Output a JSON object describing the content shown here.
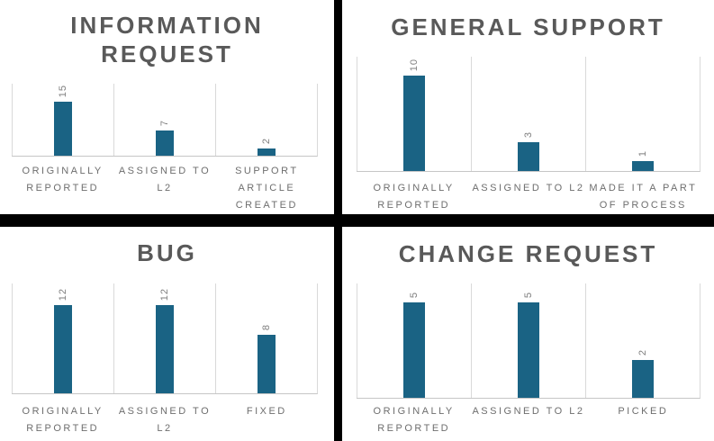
{
  "style": {
    "bar_color": "#1A6384",
    "title_color": "#595959",
    "category_label_color": "#6E6E6E",
    "value_label_color": "#7F7F7F",
    "gridline_color": "#D9D9D9",
    "baseline_color": "#C6C6C6",
    "divider_color": "#000000",
    "background": "#FFFFFF"
  },
  "layout_notes": {
    "arrangement": "2x2 grid of bar charts separated by thick black cross dividers",
    "value_labels": "rotated 90 degrees, reading bottom-to-top, above each bar",
    "legend": "none",
    "grid": "vertical category separator lines and bottom baseline only"
  },
  "chart_data": [
    {
      "type": "bar",
      "position": "top-left",
      "title": "INFORMATION REQUEST",
      "title_lines": [
        "INFORMATION",
        "REQUEST"
      ],
      "categories": [
        "ORIGINALLY REPORTED",
        "ASSIGNED TO L2",
        "SUPPORT ARTICLE CREATED"
      ],
      "category_lines": [
        [
          "ORIGINALLY",
          "REPORTED"
        ],
        [
          "ASSIGNED TO",
          "L2"
        ],
        [
          "SUPPORT",
          "ARTICLE",
          "CREATED"
        ]
      ],
      "values": [
        15,
        7,
        2
      ],
      "xlabel": "",
      "ylabel": "",
      "ylim": [
        0,
        20
      ]
    },
    {
      "type": "bar",
      "position": "top-right",
      "title": "GENERAL SUPPORT",
      "title_lines": [
        "GENERAL SUPPORT"
      ],
      "categories": [
        "ORIGINALLY REPORTED",
        "ASSIGNED TO L2",
        "MADE IT A PART OF PROCESS"
      ],
      "category_lines": [
        [
          "ORIGINALLY",
          "REPORTED"
        ],
        [
          "ASSIGNED TO L2"
        ],
        [
          "MADE IT A PART",
          "OF PROCESS"
        ]
      ],
      "values": [
        10,
        3,
        1
      ],
      "xlabel": "",
      "ylabel": "",
      "ylim": [
        0,
        12
      ]
    },
    {
      "type": "bar",
      "position": "bottom-left",
      "title": "BUG",
      "title_lines": [
        "BUG"
      ],
      "categories": [
        "ORIGINALLY REPORTED",
        "ASSIGNED TO L2",
        "FIXED"
      ],
      "category_lines": [
        [
          "ORIGINALLY",
          "REPORTED"
        ],
        [
          "ASSIGNED TO",
          "L2"
        ],
        [
          "FIXED"
        ]
      ],
      "values": [
        12,
        12,
        8
      ],
      "xlabel": "",
      "ylabel": "",
      "ylim": [
        0,
        15
      ]
    },
    {
      "type": "bar",
      "position": "bottom-right",
      "title": "CHANGE REQUEST",
      "title_lines": [
        "CHANGE REQUEST"
      ],
      "categories": [
        "ORIGINALLY REPORTED",
        "ASSIGNED TO L2",
        "PICKED"
      ],
      "category_lines": [
        [
          "ORIGINALLY",
          "REPORTED"
        ],
        [
          "ASSIGNED TO L2"
        ],
        [
          "PICKED"
        ]
      ],
      "values": [
        5,
        5,
        2
      ],
      "xlabel": "",
      "ylabel": "",
      "ylim": [
        0,
        6
      ]
    }
  ]
}
